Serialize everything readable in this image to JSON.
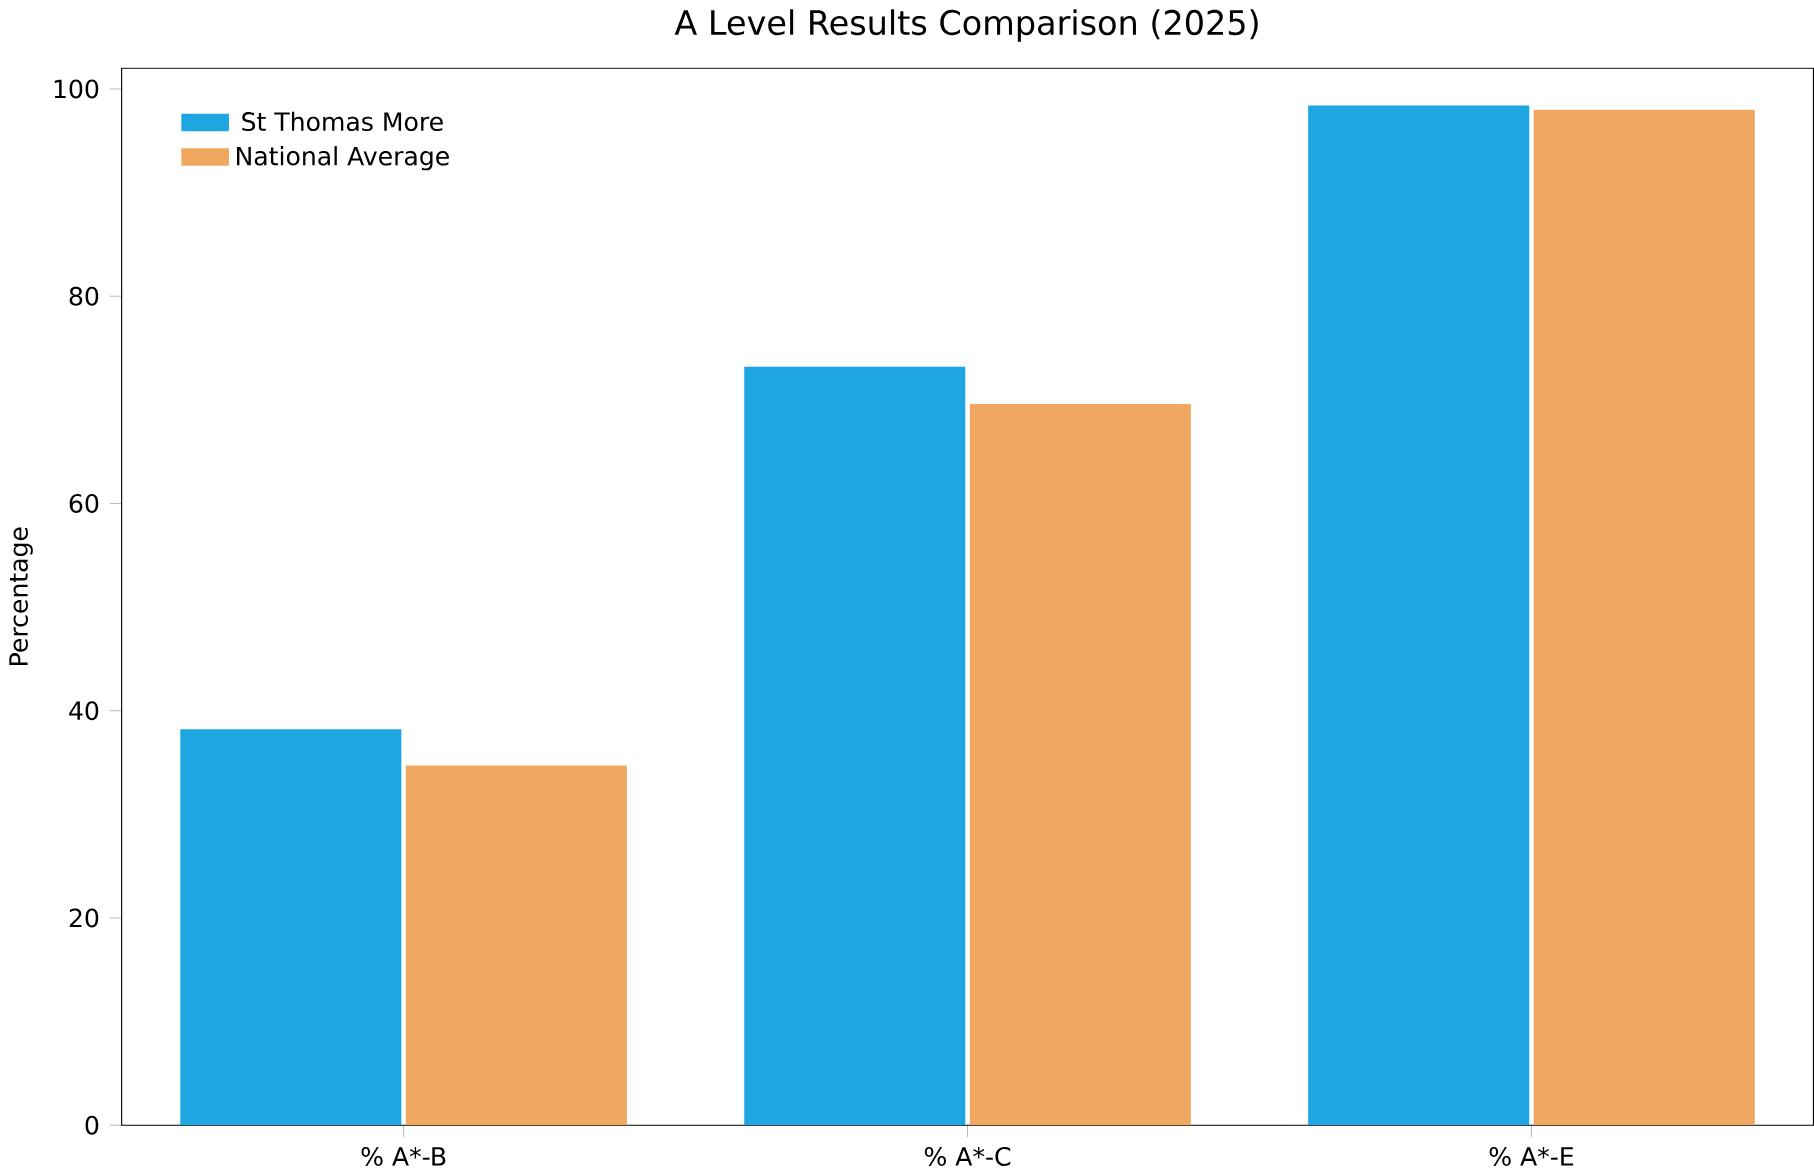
{
  "chart_data": {
    "type": "bar",
    "title": "A Level Results Comparison (2025)",
    "ylabel": "Percentage",
    "categories": [
      "% A*-B",
      "% A*-C",
      "% A*-E"
    ],
    "series": [
      {
        "name": "St Thomas More",
        "color": "#1ea6e2",
        "values": [
          38.2,
          73.2,
          98.4
        ]
      },
      {
        "name": "National Average",
        "color": "#f0a860",
        "values": [
          34.7,
          69.6,
          98.0
        ]
      }
    ],
    "ylim": [
      0,
      102
    ],
    "yticks": [
      0,
      20,
      40,
      60,
      80,
      100
    ],
    "legend": "top left",
    "grid": false
  }
}
